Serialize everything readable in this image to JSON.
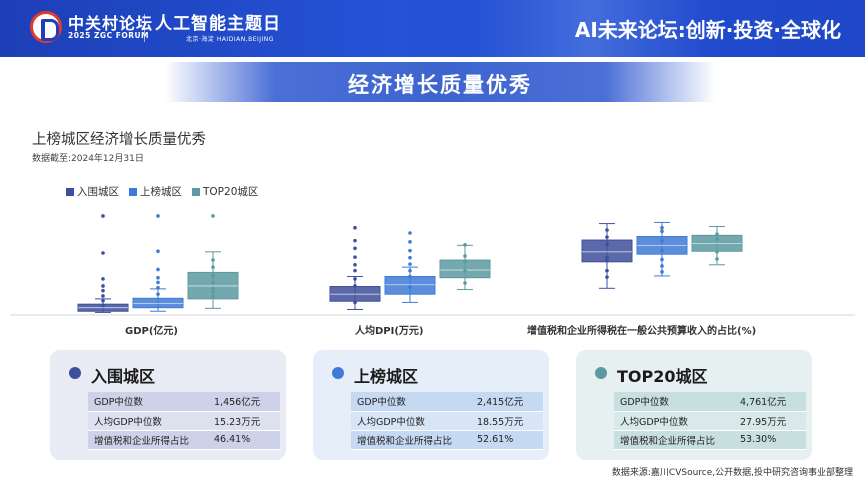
{
  "header": {
    "forum_cn": "中关村论坛",
    "forum_en": "2025 ZGC FORUM",
    "event_cn": "人工智能主题日",
    "event_location": "北京·海淀 HAIDIAN,BEIJING",
    "slogan": "AI未来论坛:创新·投资·全球化"
  },
  "page_title": "经济增长质量优秀",
  "chart_title": "上榜城区经济增长质量优秀",
  "data_date": "数据截至:2024年12月31日",
  "colors": {
    "series_1": "#3e4f9b",
    "series_2": "#3f7ad6",
    "series_3": "#5b9aa0",
    "header_blue": "#1d3fb7"
  },
  "chart_data": {
    "type": "boxplot",
    "title": "上榜城区经济增长质量优秀",
    "series_names": [
      "入围城区",
      "上榜城区",
      "TOP20城区"
    ],
    "legend_position": "top-left",
    "panels": [
      {
        "label": "GDP(亿元)",
        "ylim": [
          0,
          17
        ],
        "boxes": [
          {
            "q1": 0.3,
            "median": 0.9,
            "q3": 1.5,
            "whisker_low": 0.1,
            "whisker_high": 2.4,
            "points": [
              1.3,
              2.1,
              2.9,
              3.8,
              4.6,
              5.8,
              10.2,
              16.5
            ]
          },
          {
            "q1": 0.9,
            "median": 1.6,
            "q3": 2.5,
            "whisker_low": 0.3,
            "whisker_high": 4.1,
            "points": [
              3.2,
              4.3,
              5.2,
              6.0,
              7.4,
              10.5,
              16.5
            ]
          },
          {
            "q1": 2.4,
            "median": 4.6,
            "q3": 6.9,
            "whisker_low": 0.8,
            "whisker_high": 10.4,
            "points": [
              2.8,
              3.6,
              4.1,
              5.2,
              6.3,
              7.8,
              9.0,
              16.5
            ]
          }
        ]
      },
      {
        "label": "人均DPI(万元)",
        "ylim": [
          0,
          17
        ],
        "boxes": [
          {
            "q1": 2.0,
            "median": 3.2,
            "q3": 4.5,
            "whisker_low": 0.6,
            "whisker_high": 6.2,
            "points": [
              1.8,
              4.6,
              5.8,
              7.2,
              8.2,
              9.5,
              11.0,
              12.3,
              14.5
            ]
          },
          {
            "q1": 3.2,
            "median": 4.8,
            "q3": 6.2,
            "whisker_low": 1.8,
            "whisker_high": 7.8,
            "points": [
              4.4,
              6.2,
              7.2,
              8.3,
              9.4,
              10.6,
              12.1,
              13.6
            ]
          },
          {
            "q1": 6.0,
            "median": 7.3,
            "q3": 9.0,
            "whisker_low": 4.0,
            "whisker_high": 11.5,
            "points": [
              5.1,
              7.2,
              8.8,
              9.7,
              11.6
            ]
          }
        ]
      },
      {
        "label": "增值税和企业所得税在一般公共预算收入的占比(%)",
        "ylim": [
          0,
          17
        ],
        "boxes": [
          {
            "q1": 8.7,
            "median": 10.4,
            "q3": 12.4,
            "whisker_low": 4.2,
            "whisker_high": 15.2,
            "points": [
              6.1,
              7.2,
              8.9,
              9.4,
              11.7,
              12.9,
              14.1
            ]
          },
          {
            "q1": 10.0,
            "median": 11.5,
            "q3": 13.0,
            "whisker_low": 6.3,
            "whisker_high": 15.4,
            "points": [
              7.0,
              8.0,
              9.1,
              10.6,
              12.3,
              13.9,
              14.5
            ]
          },
          {
            "q1": 10.5,
            "median": 11.8,
            "q3": 13.2,
            "whisker_low": 8.2,
            "whisker_high": 14.7,
            "points": [
              9.2,
              10.4,
              12.6,
              13.4
            ]
          }
        ]
      }
    ]
  },
  "cards": [
    {
      "title": "入围城区",
      "rows": [
        {
          "label": "GDP中位数",
          "value": "1,456亿元"
        },
        {
          "label": "人均GDP中位数",
          "value": "15.23万元"
        },
        {
          "label": "增值税和企业所得占比",
          "value": "46.41%"
        }
      ]
    },
    {
      "title": "上榜城区",
      "rows": [
        {
          "label": "GDP中位数",
          "value": "2,415亿元"
        },
        {
          "label": "人均GDP中位数",
          "value": "18.55万元"
        },
        {
          "label": "增值税和企业所得占比",
          "value": "52.61%"
        }
      ]
    },
    {
      "title": "TOP20城区",
      "rows": [
        {
          "label": "GDP中位数",
          "value": "4,761亿元"
        },
        {
          "label": "人均GDP中位数",
          "value": "27.95万元"
        },
        {
          "label": "增值税和企业所得占比",
          "value": "53.30%"
        }
      ]
    }
  ],
  "source": "数据来源:嘉川CVSource,公开数据,投中研究咨询事业部整理"
}
